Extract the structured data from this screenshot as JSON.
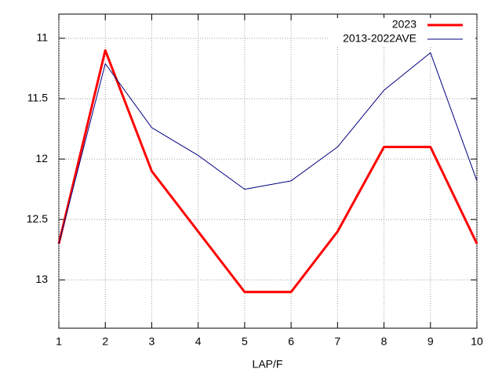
{
  "chart_data": {
    "type": "line",
    "xlabel": "LAP/F",
    "x": [
      1,
      2,
      3,
      4,
      5,
      6,
      7,
      8,
      9,
      10
    ],
    "series": [
      {
        "name": "2023",
        "color": "#ff0000",
        "width": 3,
        "values": [
          12.7,
          11.1,
          12.1,
          12.6,
          13.1,
          13.1,
          12.6,
          11.9,
          11.9,
          12.7
        ]
      },
      {
        "name": "2013-2022AVE",
        "color": "#000080",
        "width": 1,
        "values": [
          12.7,
          11.21,
          11.74,
          11.97,
          12.25,
          12.18,
          11.9,
          11.43,
          11.12,
          12.18
        ]
      }
    ],
    "xlim": [
      1,
      10
    ],
    "xticks": [
      1,
      2,
      3,
      4,
      5,
      6,
      7,
      8,
      9,
      10
    ],
    "ylim": [
      10.8,
      13.4
    ],
    "yticks": [
      11,
      11.5,
      12,
      12.5,
      13
    ],
    "y_reversed": true,
    "grid": true,
    "legend": "top-right"
  }
}
